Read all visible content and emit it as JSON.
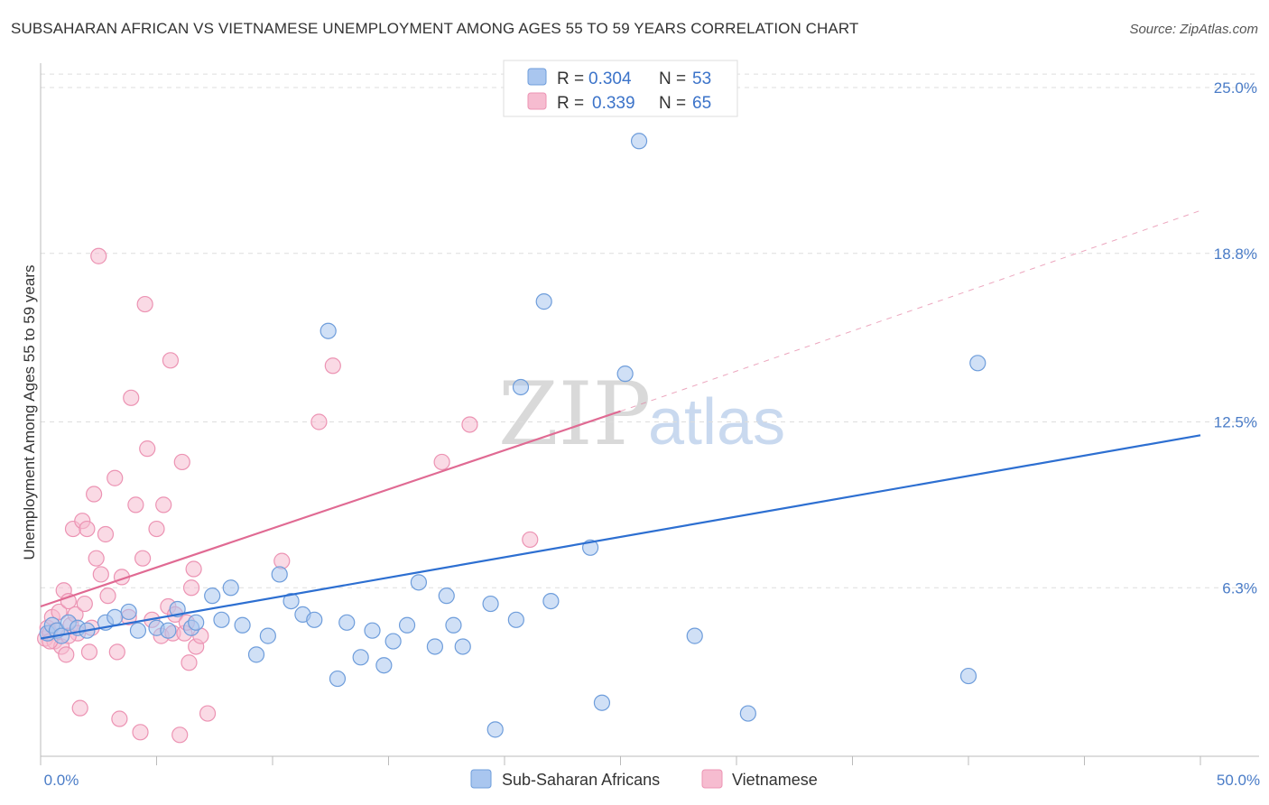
{
  "title": "SUBSAHARAN AFRICAN VS VIETNAMESE UNEMPLOYMENT AMONG AGES 55 TO 59 YEARS CORRELATION CHART",
  "source": "Source: ZipAtlas.com",
  "watermark": {
    "zip": "ZIP",
    "atlas": "atlas"
  },
  "colors": {
    "blue_fill": "#a9c6ef",
    "blue_stroke": "#6e9ddb",
    "blue_line": "#2d6fd1",
    "pink_fill": "#f6bcd0",
    "pink_stroke": "#ec93b3",
    "pink_line": "#e06a93",
    "tick_color": "#4a7cc7",
    "grid": "#dddddd"
  },
  "legend": {
    "rows": [
      {
        "r_label": "R =",
        "r_value": "0.304",
        "n_label": "N =",
        "n_value": "53"
      },
      {
        "r_label": "R =",
        "r_value": "0.339",
        "n_label": "N =",
        "n_value": "65"
      }
    ]
  },
  "chart_data": {
    "type": "scatter",
    "xlabel": "",
    "ylabel": "Unemployment Among Ages 55 to 59 years",
    "xlim": [
      0,
      50
    ],
    "ylim": [
      0,
      26
    ],
    "x_tick_labels": [
      "0.0%",
      "50.0%"
    ],
    "y_ticks": [
      6.3,
      12.5,
      18.8,
      25.0
    ],
    "y_tick_labels": [
      "6.3%",
      "12.5%",
      "18.8%",
      "25.0%"
    ],
    "grid": "horizontal dashed",
    "legend_position": "top-center",
    "series": [
      {
        "name": "Sub-Saharan Africans",
        "color": "#a9c6ef",
        "r": 0.304,
        "n": 53,
        "trend": {
          "x": [
            0,
            50
          ],
          "y": [
            4.4,
            12.0
          ],
          "style": "solid"
        },
        "points": [
          [
            0.3,
            4.6
          ],
          [
            0.5,
            4.9
          ],
          [
            0.7,
            4.7
          ],
          [
            0.9,
            4.5
          ],
          [
            1.2,
            5.0
          ],
          [
            1.6,
            4.8
          ],
          [
            2.0,
            4.7
          ],
          [
            2.8,
            5.0
          ],
          [
            3.2,
            5.2
          ],
          [
            3.8,
            5.4
          ],
          [
            4.2,
            4.7
          ],
          [
            5.0,
            4.8
          ],
          [
            5.5,
            4.7
          ],
          [
            5.9,
            5.5
          ],
          [
            6.5,
            4.8
          ],
          [
            6.7,
            5.0
          ],
          [
            7.4,
            6.0
          ],
          [
            7.8,
            5.1
          ],
          [
            8.2,
            6.3
          ],
          [
            8.7,
            4.9
          ],
          [
            9.3,
            3.8
          ],
          [
            9.8,
            4.5
          ],
          [
            10.3,
            6.8
          ],
          [
            10.8,
            5.8
          ],
          [
            11.3,
            5.3
          ],
          [
            11.8,
            5.1
          ],
          [
            12.4,
            15.9
          ],
          [
            12.8,
            2.9
          ],
          [
            13.2,
            5.0
          ],
          [
            13.8,
            3.7
          ],
          [
            14.3,
            4.7
          ],
          [
            14.8,
            3.4
          ],
          [
            15.2,
            4.3
          ],
          [
            15.8,
            4.9
          ],
          [
            16.3,
            6.5
          ],
          [
            17.0,
            4.1
          ],
          [
            17.5,
            6.0
          ],
          [
            17.8,
            4.9
          ],
          [
            18.2,
            4.1
          ],
          [
            19.4,
            5.7
          ],
          [
            19.6,
            1.0
          ],
          [
            20.5,
            5.1
          ],
          [
            20.7,
            13.8
          ],
          [
            21.7,
            17.0
          ],
          [
            22.0,
            5.8
          ],
          [
            23.7,
            7.8
          ],
          [
            24.2,
            2.0
          ],
          [
            25.2,
            14.3
          ],
          [
            25.8,
            23.0
          ],
          [
            28.2,
            4.5
          ],
          [
            30.5,
            1.6
          ],
          [
            40.0,
            3.0
          ],
          [
            40.4,
            14.7
          ]
        ]
      },
      {
        "name": "Vietnamese",
        "color": "#f6bcd0",
        "r": 0.339,
        "n": 65,
        "trend": {
          "x": [
            0,
            25
          ],
          "y": [
            5.6,
            12.9
          ],
          "style": "solid",
          "extended_x": [
            25,
            50
          ],
          "extended_y": [
            12.9,
            20.4
          ],
          "extended_style": "dashed"
        },
        "points": [
          [
            0.2,
            4.4
          ],
          [
            0.3,
            4.8
          ],
          [
            0.4,
            4.6
          ],
          [
            0.5,
            5.2
          ],
          [
            0.6,
            4.3
          ],
          [
            0.7,
            4.7
          ],
          [
            0.8,
            5.4
          ],
          [
            0.9,
            4.1
          ],
          [
            1.0,
            6.2
          ],
          [
            1.1,
            3.8
          ],
          [
            1.2,
            5.8
          ],
          [
            1.3,
            4.9
          ],
          [
            1.4,
            8.5
          ],
          [
            1.5,
            5.3
          ],
          [
            1.6,
            4.6
          ],
          [
            1.7,
            1.8
          ],
          [
            1.8,
            8.8
          ],
          [
            1.9,
            5.7
          ],
          [
            2.0,
            8.5
          ],
          [
            2.1,
            3.9
          ],
          [
            2.2,
            4.8
          ],
          [
            2.3,
            9.8
          ],
          [
            2.4,
            7.4
          ],
          [
            2.5,
            18.7
          ],
          [
            2.6,
            6.8
          ],
          [
            2.8,
            8.3
          ],
          [
            2.9,
            6.0
          ],
          [
            3.2,
            10.4
          ],
          [
            3.3,
            3.9
          ],
          [
            3.4,
            1.4
          ],
          [
            3.5,
            6.7
          ],
          [
            3.8,
            5.2
          ],
          [
            3.9,
            13.4
          ],
          [
            4.1,
            9.4
          ],
          [
            4.3,
            0.9
          ],
          [
            4.4,
            7.4
          ],
          [
            4.5,
            16.9
          ],
          [
            4.6,
            11.5
          ],
          [
            4.8,
            5.1
          ],
          [
            5.0,
            8.5
          ],
          [
            5.2,
            4.5
          ],
          [
            5.3,
            9.4
          ],
          [
            5.5,
            5.6
          ],
          [
            5.6,
            14.8
          ],
          [
            5.7,
            4.6
          ],
          [
            5.8,
            5.3
          ],
          [
            6.0,
            0.8
          ],
          [
            6.1,
            11.0
          ],
          [
            6.2,
            4.6
          ],
          [
            6.4,
            3.5
          ],
          [
            6.5,
            6.3
          ],
          [
            6.6,
            7.0
          ],
          [
            6.7,
            4.1
          ],
          [
            6.9,
            4.5
          ],
          [
            7.2,
            1.6
          ],
          [
            10.4,
            7.3
          ],
          [
            12.0,
            12.5
          ],
          [
            12.6,
            14.6
          ],
          [
            17.3,
            11.0
          ],
          [
            18.5,
            12.4
          ],
          [
            21.1,
            8.1
          ],
          [
            20.5,
            24.7
          ],
          [
            6.3,
            5.0
          ],
          [
            0.4,
            4.3
          ],
          [
            1.2,
            4.5
          ]
        ]
      }
    ]
  }
}
